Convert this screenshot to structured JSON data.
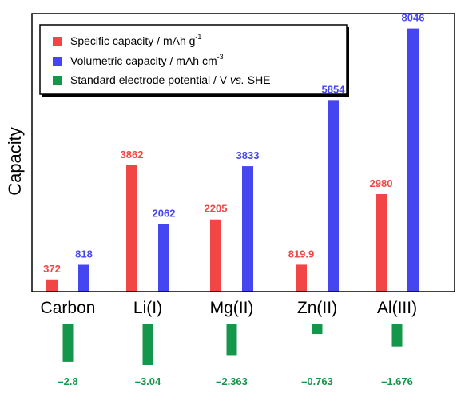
{
  "chart_data": {
    "type": "bar",
    "categories": [
      "Carbon",
      "Li(I)",
      "Mg(II)",
      "Zn(II)",
      "Al(III)"
    ],
    "series": [
      {
        "name": "Specific capacity / mAh g-1",
        "color": "#f24545",
        "values": [
          372,
          3862,
          2205,
          819.9,
          2980
        ],
        "labels": [
          "372",
          "3862",
          "2205",
          "819.9",
          "2980"
        ]
      },
      {
        "name": "Volumetric capacity / mAh cm-3",
        "color": "#4646f0",
        "values": [
          818,
          2062,
          3833,
          5854,
          8046
        ],
        "labels": [
          "818",
          "2062",
          "3833",
          "5854",
          "8046"
        ]
      },
      {
        "name": "Standard electrode potential / V vs. SHE",
        "color": "#14964b",
        "values": [
          -2.8,
          -3.04,
          -2.363,
          -0.763,
          -1.676
        ],
        "labels": [
          "–2.8",
          "–3.04",
          "–2.363",
          "–0.763",
          "–1.676"
        ]
      }
    ],
    "ylabel": "Capacity",
    "ylim": [
      0,
      8500
    ],
    "grid": false,
    "legend_position": "top-left",
    "legend": [
      {
        "main": "Specific capacity / mAh g",
        "sup": "-1"
      },
      {
        "main": "Volumetric capacity / mAh cm",
        "sup": "-3"
      },
      {
        "main": "Standard electrode potential / V ",
        "italic": "vs.",
        "tail": " SHE"
      }
    ]
  }
}
